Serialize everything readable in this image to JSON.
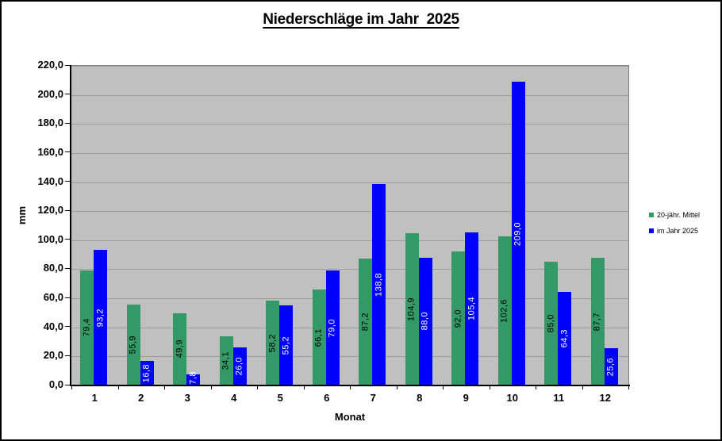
{
  "chart_data": {
    "type": "bar",
    "title": "Niederschläge im Jahr  2025",
    "categories": [
      "1",
      "2",
      "3",
      "4",
      "5",
      "6",
      "7",
      "8",
      "9",
      "10",
      "11",
      "12"
    ],
    "series": [
      {
        "name": "20-jähr. Mittel",
        "color": "#339966",
        "label_color": "#000000",
        "values": [
          79.4,
          55.9,
          49.9,
          34.1,
          58.2,
          66.1,
          87.2,
          104.9,
          92.0,
          102.6,
          85.0,
          87.7
        ],
        "labels": [
          "79,4",
          "55,9",
          "49,9",
          "34,1",
          "58,2",
          "66,1",
          "87,2",
          "104,9",
          "92,0",
          "102,6",
          "85,0",
          "87,7"
        ]
      },
      {
        "name": "im Jahr 2025",
        "color": "#0000ff",
        "label_color": "#ffffff",
        "values": [
          93.2,
          16.8,
          7.8,
          26.0,
          55.2,
          79.0,
          138.8,
          88.0,
          105.4,
          209.0,
          64.3,
          25.6
        ],
        "labels": [
          "93,2",
          "16,8",
          "7,8",
          "26,0",
          "55,2",
          "79,0",
          "138,8",
          "88,0",
          "105,4",
          "209,0",
          "64,3",
          "25,6"
        ]
      }
    ],
    "xlabel": "Monat",
    "ylabel": "mm",
    "ylim": [
      0,
      220
    ],
    "ytick_step": 20,
    "ytick_labels": [
      "0,0",
      "20,0",
      "40,0",
      "60,0",
      "80,0",
      "100,0",
      "120,0",
      "140,0",
      "160,0",
      "180,0",
      "200,0",
      "220,0"
    ],
    "grid": true,
    "legend_position": "right",
    "plot_bg": "#c0c0c0",
    "grid_color": "#9c9c9c",
    "axis_color": "#000000",
    "plot_border_color": "#808080"
  }
}
